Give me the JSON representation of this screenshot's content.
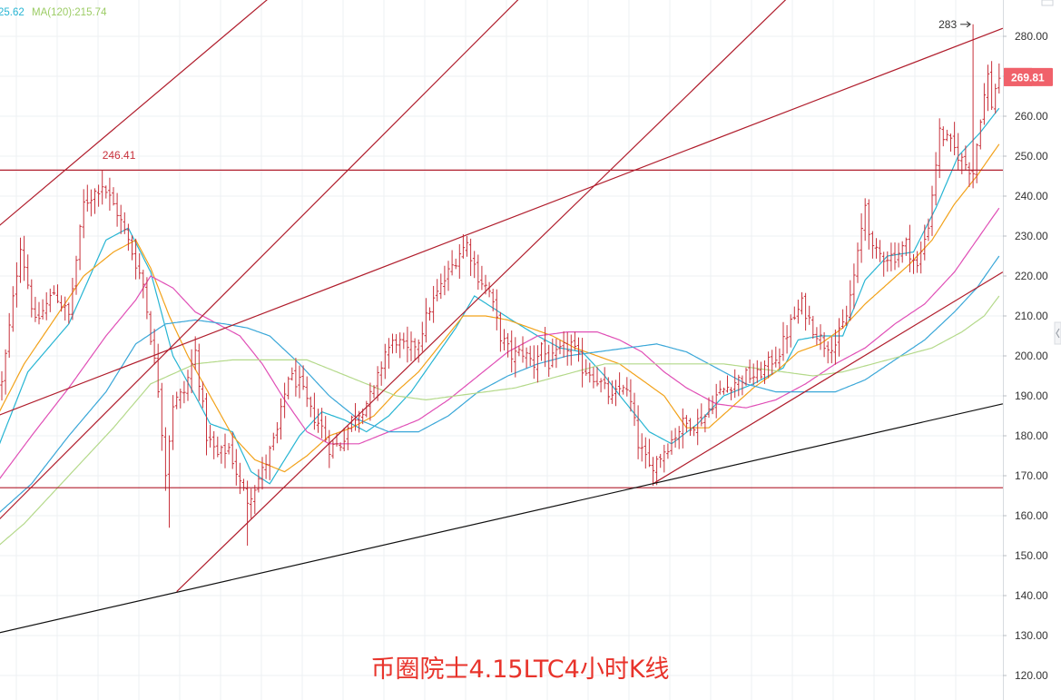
{
  "legend": {
    "ma_short_text": "25.62",
    "ma120_text": "MA(120):215.74"
  },
  "caption": "币圈院士4.15LTC4小时K线",
  "colors": {
    "bar": "#c8313b",
    "trendline_red": "#b01d2c",
    "trendline_black": "#111111",
    "price_badge": "#f0616a",
    "ma_cyan": "#27b5d3",
    "ma_orange": "#f2a21a",
    "ma_magenta": "#e04fb6",
    "ma_blue": "#3aa7d8",
    "ma_green": "#b4d98a",
    "grid": "#eef0f3"
  },
  "chart_data": {
    "type": "ohlc",
    "y_axis": {
      "position": "right",
      "range": [
        115,
        289
      ],
      "ticks": [
        120,
        130,
        140,
        150,
        160,
        170,
        180,
        190,
        200,
        210,
        220,
        230,
        240,
        250,
        260,
        270,
        280
      ]
    },
    "grid": true,
    "last_price": "269.81",
    "annotations": [
      {
        "label": "246.41",
        "price": 246.41,
        "bar": 27
      },
      {
        "label": "283",
        "price": 283,
        "bar": 261,
        "arrow": true
      }
    ],
    "horizontal_lines": [
      246.5,
      167.0
    ],
    "trendlines": [
      {
        "color": "red",
        "from": {
          "bar": -4,
          "price": 230
        },
        "to": {
          "bar": 108,
          "price": 318
        }
      },
      {
        "color": "red",
        "from": {
          "bar": -4,
          "price": 184
        },
        "to": {
          "bar": 269,
          "price": 282
        }
      },
      {
        "color": "red",
        "from": {
          "bar": 47,
          "price": 141
        },
        "to": {
          "bar": 269,
          "price": 342
        }
      },
      {
        "color": "red",
        "from": {
          "bar": -4,
          "price": 156
        },
        "to": {
          "bar": 160,
          "price": 309
        }
      },
      {
        "color": "red",
        "from": {
          "bar": 175,
          "price": 168
        },
        "to": {
          "bar": 269,
          "price": 221
        }
      },
      {
        "color": "black",
        "from": {
          "bar": -4,
          "price": 130
        },
        "to": {
          "bar": 269,
          "price": 188
        }
      }
    ],
    "price_anchors": [
      [
        0,
        193
      ],
      [
        5,
        228
      ],
      [
        9,
        208
      ],
      [
        14,
        216
      ],
      [
        18,
        210
      ],
      [
        22,
        238
      ],
      [
        27,
        243
      ],
      [
        31,
        236
      ],
      [
        35,
        226
      ],
      [
        38,
        218
      ],
      [
        40,
        205
      ],
      [
        42,
        192
      ],
      [
        44,
        171
      ],
      [
        46,
        188
      ],
      [
        49,
        191
      ],
      [
        52,
        201
      ],
      [
        55,
        180
      ],
      [
        58,
        175
      ],
      [
        61,
        177
      ],
      [
        64,
        168
      ],
      [
        66,
        164
      ],
      [
        70,
        171
      ],
      [
        74,
        181
      ],
      [
        77,
        195
      ],
      [
        80,
        193
      ],
      [
        83,
        186
      ],
      [
        86,
        182
      ],
      [
        88,
        177
      ],
      [
        91,
        178
      ],
      [
        94,
        184
      ],
      [
        97,
        187
      ],
      [
        100,
        191
      ],
      [
        103,
        201
      ],
      [
        106,
        204
      ],
      [
        109,
        201
      ],
      [
        112,
        204
      ],
      [
        115,
        212
      ],
      [
        119,
        219
      ],
      [
        123,
        226
      ],
      [
        125,
        228
      ],
      [
        128,
        220
      ],
      [
        131,
        216
      ],
      [
        134,
        205
      ],
      [
        137,
        200
      ],
      [
        140,
        201
      ],
      [
        143,
        198
      ],
      [
        145,
        203
      ],
      [
        147,
        198
      ],
      [
        150,
        201
      ],
      [
        153,
        203
      ],
      [
        156,
        197
      ],
      [
        158,
        196
      ],
      [
        161,
        193
      ],
      [
        164,
        189
      ],
      [
        167,
        193
      ],
      [
        169,
        188
      ],
      [
        171,
        178
      ],
      [
        174,
        172
      ],
      [
        177,
        175
      ],
      [
        180,
        179
      ],
      [
        183,
        183
      ],
      [
        186,
        183
      ],
      [
        189,
        185
      ],
      [
        192,
        190
      ],
      [
        196,
        193
      ],
      [
        200,
        195
      ],
      [
        203,
        195
      ],
      [
        206,
        198
      ],
      [
        209,
        201
      ],
      [
        212,
        208
      ],
      [
        215,
        213
      ],
      [
        218,
        207
      ],
      [
        221,
        203
      ],
      [
        224,
        203
      ],
      [
        227,
        210
      ],
      [
        230,
        225
      ],
      [
        232,
        238
      ],
      [
        234,
        226
      ],
      [
        237,
        225
      ],
      [
        240,
        225
      ],
      [
        243,
        228
      ],
      [
        246,
        222
      ],
      [
        249,
        233
      ],
      [
        252,
        256
      ],
      [
        255,
        253
      ],
      [
        258,
        249
      ],
      [
        261,
        246
      ],
      [
        263,
        260
      ],
      [
        265,
        270
      ],
      [
        266,
        263
      ],
      [
        267,
        267
      ],
      [
        268,
        270
      ]
    ],
    "moving_averages": [
      {
        "color": "cyan",
        "anchors": [
          [
            -4,
            170
          ],
          [
            7,
            196
          ],
          [
            18,
            208
          ],
          [
            28,
            229
          ],
          [
            34,
            232
          ],
          [
            40,
            221
          ],
          [
            46,
            200
          ],
          [
            52,
            190
          ],
          [
            56,
            183
          ],
          [
            62,
            181
          ],
          [
            67,
            171
          ],
          [
            72,
            168
          ],
          [
            80,
            180
          ],
          [
            86,
            186
          ],
          [
            92,
            184
          ],
          [
            98,
            181
          ],
          [
            104,
            185
          ],
          [
            110,
            191
          ],
          [
            116,
            199
          ],
          [
            122,
            207
          ],
          [
            127,
            215
          ],
          [
            132,
            212
          ],
          [
            137,
            209
          ],
          [
            144,
            205
          ],
          [
            150,
            202
          ],
          [
            156,
            201
          ],
          [
            162,
            195
          ],
          [
            167,
            189
          ],
          [
            174,
            181
          ],
          [
            180,
            178
          ],
          [
            187,
            183
          ],
          [
            194,
            190
          ],
          [
            202,
            193
          ],
          [
            210,
            197
          ],
          [
            214,
            204
          ],
          [
            220,
            205
          ],
          [
            226,
            205
          ],
          [
            232,
            219
          ],
          [
            238,
            225
          ],
          [
            245,
            226
          ],
          [
            251,
            237
          ],
          [
            257,
            250
          ],
          [
            263,
            256
          ],
          [
            268,
            262
          ]
        ]
      },
      {
        "color": "orange",
        "anchors": [
          [
            -4,
            180
          ],
          [
            6,
            198
          ],
          [
            14,
            209
          ],
          [
            22,
            220
          ],
          [
            30,
            226
          ],
          [
            36,
            229
          ],
          [
            40,
            222
          ],
          [
            45,
            210
          ],
          [
            50,
            200
          ],
          [
            56,
            190
          ],
          [
            62,
            180
          ],
          [
            68,
            174
          ],
          [
            76,
            171
          ],
          [
            82,
            175
          ],
          [
            88,
            180
          ],
          [
            94,
            182
          ],
          [
            100,
            185
          ],
          [
            106,
            191
          ],
          [
            112,
            196
          ],
          [
            118,
            203
          ],
          [
            124,
            210
          ],
          [
            130,
            210
          ],
          [
            136,
            209
          ],
          [
            142,
            207
          ],
          [
            148,
            205
          ],
          [
            154,
            202
          ],
          [
            160,
            200
          ],
          [
            166,
            198
          ],
          [
            172,
            194
          ],
          [
            178,
            190
          ],
          [
            184,
            182
          ],
          [
            190,
            182
          ],
          [
            196,
            187
          ],
          [
            202,
            192
          ],
          [
            208,
            196
          ],
          [
            214,
            201
          ],
          [
            220,
            203
          ],
          [
            226,
            207
          ],
          [
            232,
            213
          ],
          [
            238,
            218
          ],
          [
            244,
            223
          ],
          [
            250,
            229
          ],
          [
            256,
            238
          ],
          [
            262,
            245
          ],
          [
            268,
            253
          ]
        ]
      },
      {
        "color": "magenta",
        "anchors": [
          [
            -4,
            165
          ],
          [
            8,
            180
          ],
          [
            18,
            192
          ],
          [
            28,
            205
          ],
          [
            36,
            214
          ],
          [
            40,
            220
          ],
          [
            46,
            217
          ],
          [
            52,
            211
          ],
          [
            58,
            208
          ],
          [
            64,
            205
          ],
          [
            70,
            198
          ],
          [
            76,
            189
          ],
          [
            82,
            181
          ],
          [
            88,
            178
          ],
          [
            96,
            178
          ],
          [
            104,
            181
          ],
          [
            112,
            184
          ],
          [
            120,
            189
          ],
          [
            128,
            195
          ],
          [
            136,
            201
          ],
          [
            144,
            205
          ],
          [
            152,
            206
          ],
          [
            160,
            206
          ],
          [
            166,
            204
          ],
          [
            172,
            201
          ],
          [
            178,
            196
          ],
          [
            184,
            192
          ],
          [
            192,
            188
          ],
          [
            200,
            187
          ],
          [
            208,
            189
          ],
          [
            216,
            193
          ],
          [
            224,
            198
          ],
          [
            232,
            202
          ],
          [
            240,
            208
          ],
          [
            248,
            213
          ],
          [
            256,
            221
          ],
          [
            262,
            229
          ],
          [
            268,
            237
          ]
        ]
      },
      {
        "color": "blue",
        "anchors": [
          [
            -4,
            158
          ],
          [
            8,
            168
          ],
          [
            18,
            180
          ],
          [
            28,
            191
          ],
          [
            36,
            203
          ],
          [
            44,
            208
          ],
          [
            52,
            209
          ],
          [
            60,
            208
          ],
          [
            66,
            207
          ],
          [
            72,
            205
          ],
          [
            80,
            198
          ],
          [
            88,
            190
          ],
          [
            96,
            184
          ],
          [
            104,
            181
          ],
          [
            112,
            181
          ],
          [
            120,
            185
          ],
          [
            128,
            191
          ],
          [
            136,
            195
          ],
          [
            144,
            198
          ],
          [
            152,
            200
          ],
          [
            160,
            201
          ],
          [
            168,
            202
          ],
          [
            176,
            203
          ],
          [
            184,
            201
          ],
          [
            192,
            197
          ],
          [
            200,
            193
          ],
          [
            208,
            191
          ],
          [
            216,
            191
          ],
          [
            224,
            191
          ],
          [
            232,
            194
          ],
          [
            240,
            199
          ],
          [
            248,
            204
          ],
          [
            256,
            211
          ],
          [
            262,
            217
          ],
          [
            268,
            225
          ]
        ]
      },
      {
        "color": "green",
        "anchors": [
          [
            -4,
            150
          ],
          [
            6,
            158
          ],
          [
            18,
            170
          ],
          [
            30,
            182
          ],
          [
            40,
            193
          ],
          [
            52,
            198
          ],
          [
            62,
            199
          ],
          [
            72,
            199
          ],
          [
            82,
            199
          ],
          [
            90,
            196
          ],
          [
            98,
            193
          ],
          [
            106,
            190
          ],
          [
            114,
            189
          ],
          [
            122,
            190
          ],
          [
            130,
            191
          ],
          [
            138,
            192
          ],
          [
            146,
            194
          ],
          [
            154,
            196
          ],
          [
            162,
            198
          ],
          [
            170,
            198
          ],
          [
            178,
            198
          ],
          [
            186,
            198
          ],
          [
            194,
            198
          ],
          [
            202,
            197
          ],
          [
            210,
            196
          ],
          [
            218,
            195
          ],
          [
            226,
            196
          ],
          [
            234,
            198
          ],
          [
            242,
            200
          ],
          [
            250,
            202
          ],
          [
            258,
            206
          ],
          [
            264,
            210
          ],
          [
            268,
            215
          ]
        ]
      }
    ]
  }
}
